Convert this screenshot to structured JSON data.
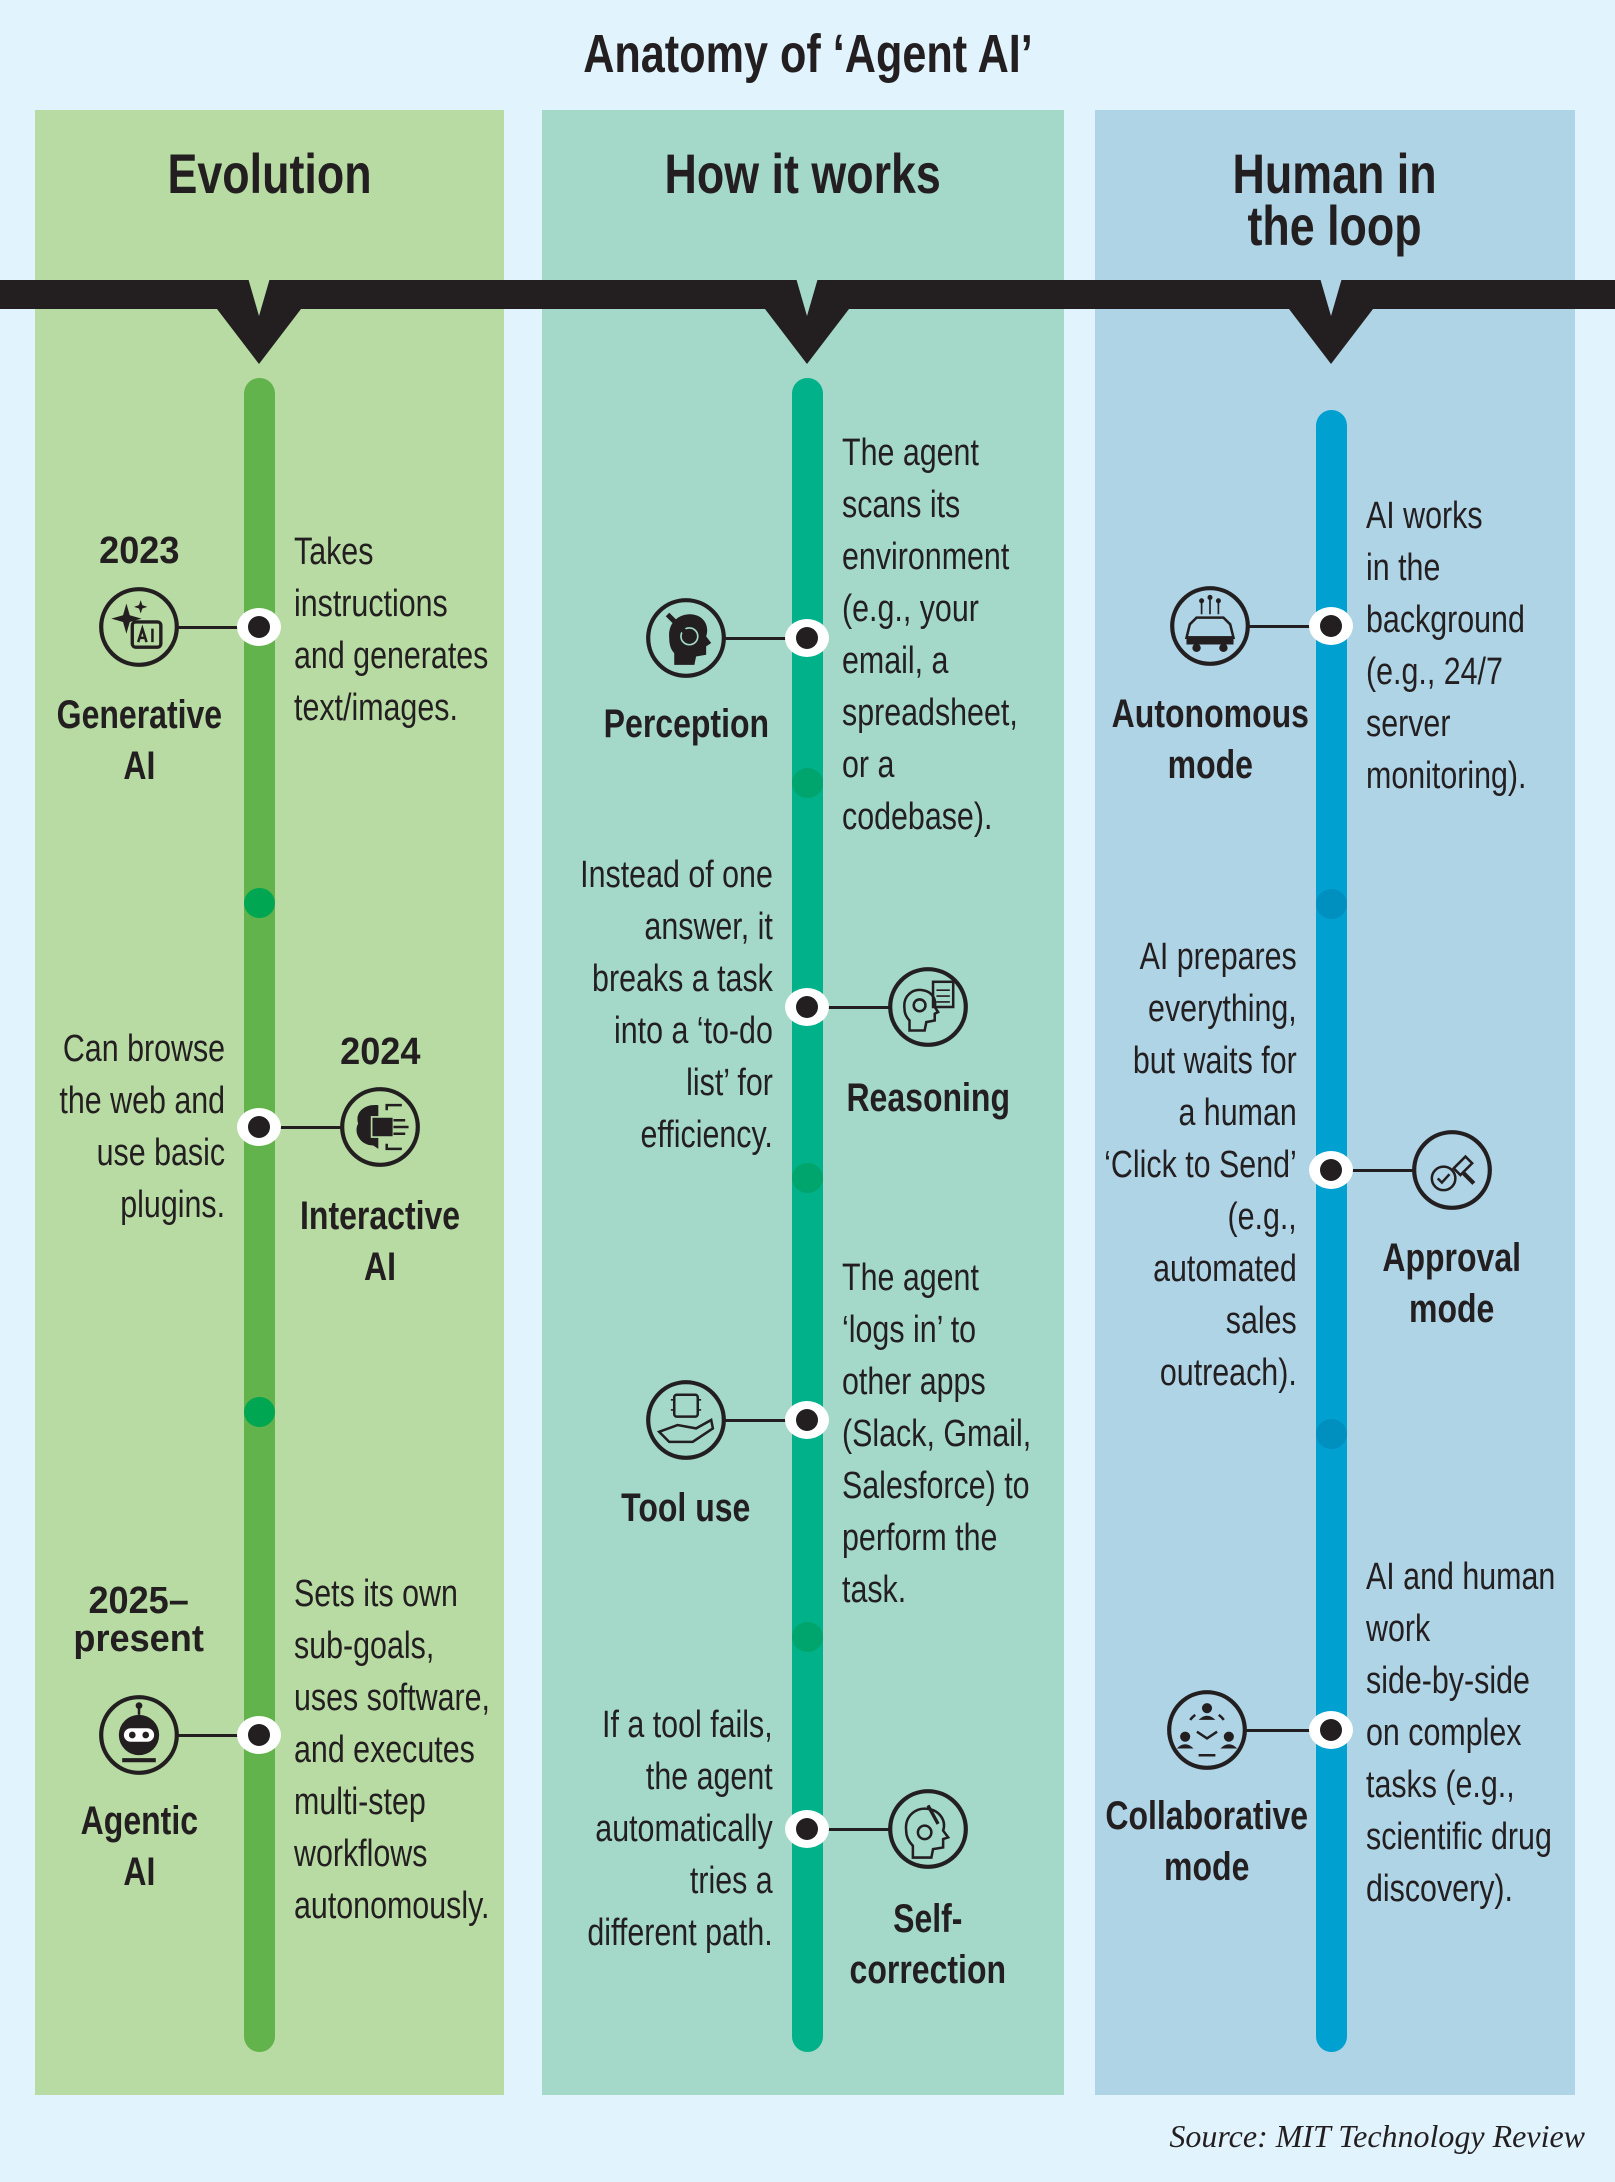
{
  "title": "Anatomy of ‘Agent AI’",
  "colors": {
    "page_background": "#e1f3fd",
    "band": "#231f20",
    "evolution": {
      "panel": "#b7dba3",
      "timeline": "#62b34b",
      "marker": "#00a651"
    },
    "how_it_works": {
      "panel": "#a4d9c9",
      "timeline": "#00b189",
      "marker": "#00a46d"
    },
    "human_in_the_loop": {
      "panel": "#afd4e6",
      "timeline": "#00a0d0",
      "marker": "#0090c0"
    }
  },
  "columns": [
    {
      "heading": "Evolution",
      "items": [
        {
          "year": "2023",
          "label": "Generative\nAI",
          "icon": "sparkle-ai-icon",
          "description": "Takes\ninstructions\nand generates\ntext/images."
        },
        {
          "year": "2024",
          "label": "Interactive\nAI",
          "icon": "brain-chip-icon",
          "description": "Can browse\nthe web and\nuse basic\nplugins."
        },
        {
          "year": "2025–\npresent",
          "label": "Agentic\nAI",
          "icon": "robot-icon",
          "description": "Sets its own\nsub-goals,\nuses software,\nand executes\nmulti-step\nworkflows\nautonomously."
        }
      ]
    },
    {
      "heading": "How it works",
      "items": [
        {
          "label": "Perception",
          "icon": "head-perception-icon",
          "description": "The agent\nscans its\nenvironment\n(e.g., your\nemail, a\nspreadsheet,\nor a\ncodebase)."
        },
        {
          "label": "Reasoning",
          "icon": "head-gear-document-icon",
          "description": "Instead of one\nanswer, it\nbreaks a task\ninto a ‘to-do\nlist’ for\nefficiency."
        },
        {
          "label": "Tool use",
          "icon": "hand-chip-icon",
          "description": "The agent\n‘logs in’ to\nother apps\n(Slack, Gmail,\nSalesforce) to\nperform the\ntask."
        },
        {
          "label": "Self-\ncorrection",
          "icon": "head-wrench-gear-icon",
          "description": "If a tool fails,\nthe agent\nautomatically\ntries a\ndifferent path."
        }
      ]
    },
    {
      "heading": "Human in\nthe loop",
      "items": [
        {
          "label": "Autonomous\nmode",
          "icon": "autonomous-car-icon",
          "description": "AI works\nin the\nbackground\n(e.g., 24/7\nserver\nmonitoring)."
        },
        {
          "label": "Approval\nmode",
          "icon": "approval-stamp-icon",
          "description": "AI prepares\neverything,\nbut waits for\na human\n‘Click to Send’\n(e.g.,\nautomated\nsales\noutreach)."
        },
        {
          "label": "Collaborative\nmode",
          "icon": "collaboration-people-icon",
          "description": "AI and human\nwork\nside-by-side\non complex\ntasks (e.g.,\nscientific drug\ndiscovery)."
        }
      ]
    }
  ],
  "source": "Source: MIT Technology Review"
}
